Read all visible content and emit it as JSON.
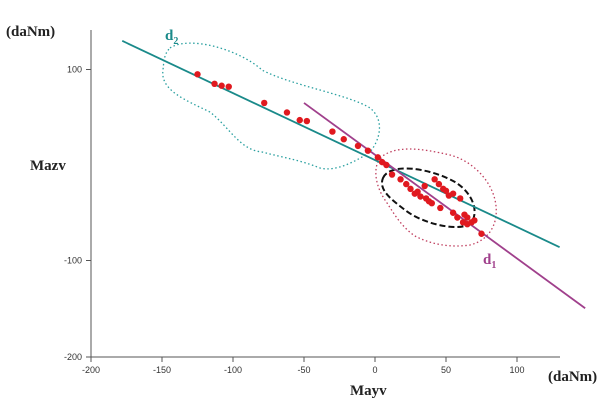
{
  "chart_data": {
    "type": "scatter",
    "title": "",
    "xlabel": "Mayv",
    "ylabel": "Mazv",
    "x_unit": "(daNm)",
    "y_unit": "(daNm)",
    "xlim": [
      -200,
      130
    ],
    "ylim": [
      -200,
      150
    ],
    "xticks": [
      -200,
      -150,
      -100,
      -50,
      0,
      50,
      100
    ],
    "xtick_labels": [
      "-200",
      "-150",
      "-100",
      "-50",
      "0",
      "50",
      "100"
    ],
    "yticks": [
      -200,
      -100,
      100
    ],
    "ytick_labels": [
      "-200",
      "-100",
      "100"
    ],
    "grid": false,
    "points": {
      "color": "#e0191f",
      "x": [
        -125,
        -113,
        -108,
        -103,
        -78,
        -62,
        -53,
        -48,
        -30,
        -22,
        -12,
        -5,
        2,
        5,
        8,
        12,
        18,
        22,
        25,
        28,
        30,
        32,
        35,
        36,
        38,
        40,
        42,
        45,
        46,
        48,
        50,
        52,
        55,
        55,
        58,
        60,
        62,
        63,
        65,
        65,
        68,
        70,
        75
      ],
      "y": [
        95,
        85,
        83,
        82,
        65,
        55,
        47,
        46,
        35,
        27,
        20,
        15,
        8,
        3,
        0,
        -10,
        -15,
        -20,
        -25,
        -30,
        -28,
        -33,
        -22,
        -35,
        -38,
        -40,
        -15,
        -20,
        -45,
        -25,
        -27,
        -32,
        -30,
        -50,
        -55,
        -35,
        -60,
        -52,
        -55,
        -62,
        -60,
        -58,
        -72
      ]
    },
    "lines": [
      {
        "name": "d2",
        "color": "#1a8a8a",
        "x": [
          -178,
          130
        ],
        "y": [
          130,
          -86
        ]
      },
      {
        "name": "d1",
        "color": "#a0408c",
        "x": [
          -50,
          148
        ],
        "y": [
          65,
          -150
        ]
      }
    ],
    "regions": [
      {
        "color": "#2aa0a0",
        "style": "dotted"
      },
      {
        "color": "#c04060",
        "style": "dotted"
      },
      {
        "color": "#111111",
        "style": "dashed"
      }
    ]
  }
}
